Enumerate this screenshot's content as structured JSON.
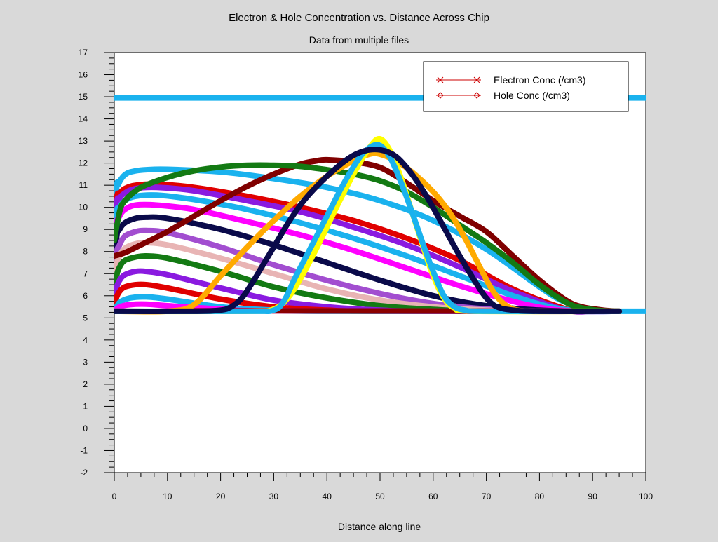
{
  "window": {
    "background": "#d9d9d9"
  },
  "chart_data": {
    "type": "line",
    "title": "Electron & Hole Concentration vs. Distance Across Chip",
    "subtitle": "Data from multiple files",
    "xlabel": "Distance along line",
    "ylabel": "",
    "xlim": [
      0,
      100
    ],
    "ylim": [
      -2,
      17
    ],
    "x_ticks": [
      0,
      10,
      20,
      30,
      40,
      50,
      60,
      70,
      80,
      90,
      100
    ],
    "y_ticks": [
      -2,
      -1,
      0,
      1,
      2,
      3,
      4,
      5,
      6,
      7,
      8,
      9,
      10,
      11,
      12,
      13,
      14,
      15,
      16,
      17
    ],
    "grid": false,
    "legend": {
      "placement": "top-right",
      "entries": [
        {
          "label": "Electron Conc (/cm3)",
          "marker": "x",
          "color": "#cc0000"
        },
        {
          "label": "Hole Conc (/cm3)",
          "marker": "diamond",
          "color": "#cc0000"
        }
      ]
    },
    "series": [
      {
        "color": "#1ab2ee",
        "x": [
          0,
          100
        ],
        "y": [
          14.95,
          14.95
        ]
      },
      {
        "color": "#1ab2ee",
        "x": [
          0,
          0.4,
          0.8,
          1.5,
          2.5,
          4,
          6,
          10,
          20,
          30,
          40,
          50,
          60,
          70,
          80,
          84,
          88,
          90,
          92,
          95,
          100
        ],
        "y": [
          5.3,
          10.6,
          11.05,
          11.35,
          11.55,
          11.65,
          11.7,
          11.72,
          11.6,
          11.3,
          10.9,
          10.3,
          9.4,
          8.1,
          6.4,
          5.8,
          5.45,
          5.35,
          5.3,
          5.3,
          5.3
        ]
      },
      {
        "color": "#e00000",
        "x": [
          0,
          0.4,
          1,
          2,
          4,
          8,
          15,
          25,
          35,
          45,
          55,
          65,
          75,
          85,
          88,
          92,
          95
        ],
        "y": [
          5.3,
          10.1,
          10.6,
          10.85,
          11.0,
          11.05,
          10.9,
          10.5,
          10.0,
          9.4,
          8.6,
          7.6,
          6.3,
          5.4,
          5.3,
          5.3,
          5.3
        ]
      },
      {
        "color": "#8a1ae0",
        "x": [
          0,
          0.4,
          1,
          2,
          4,
          8,
          15,
          25,
          35,
          45,
          55,
          65,
          75,
          85,
          90,
          95
        ],
        "y": [
          5.3,
          9.9,
          10.4,
          10.65,
          10.85,
          10.9,
          10.75,
          10.3,
          9.8,
          9.1,
          8.3,
          7.3,
          6.2,
          5.35,
          5.3,
          5.3
        ]
      },
      {
        "color": "#1ab2ee",
        "x": [
          0,
          0.4,
          1,
          2,
          4,
          8,
          15,
          25,
          35,
          45,
          55,
          65,
          75,
          82,
          88,
          95
        ],
        "y": [
          5.3,
          9.5,
          10.0,
          10.3,
          10.5,
          10.55,
          10.35,
          9.9,
          9.3,
          8.6,
          7.8,
          6.9,
          6.0,
          5.5,
          5.3,
          5.3
        ]
      },
      {
        "color": "#ff00ff",
        "x": [
          0,
          0.4,
          1,
          2,
          4,
          8,
          15,
          25,
          35,
          45,
          55,
          65,
          75,
          82,
          88,
          95
        ],
        "y": [
          5.3,
          9.0,
          9.6,
          9.9,
          10.1,
          10.1,
          9.9,
          9.35,
          8.75,
          8.05,
          7.25,
          6.45,
          5.75,
          5.4,
          5.3,
          5.3
        ]
      },
      {
        "color": "#0a0a4a",
        "x": [
          0,
          0.4,
          1,
          2,
          4,
          6,
          10,
          20,
          30,
          40,
          50,
          60,
          70,
          80,
          88,
          95
        ],
        "y": [
          5.3,
          8.5,
          9.0,
          9.3,
          9.5,
          9.55,
          9.5,
          9.0,
          8.3,
          7.5,
          6.7,
          6.0,
          5.55,
          5.35,
          5.3,
          5.3
        ]
      },
      {
        "color": "#a24ed0",
        "x": [
          0,
          0.4,
          1,
          2,
          4,
          6,
          10,
          20,
          30,
          40,
          50,
          60,
          70,
          80,
          88,
          95
        ],
        "y": [
          5.3,
          7.8,
          8.3,
          8.7,
          8.9,
          8.95,
          8.85,
          8.2,
          7.4,
          6.7,
          6.1,
          5.65,
          5.4,
          5.3,
          5.3,
          5.3
        ]
      },
      {
        "color": "#e8b4b4",
        "x": [
          0,
          0.4,
          1,
          2,
          4,
          6,
          10,
          20,
          30,
          40,
          50,
          60,
          70,
          80,
          95
        ],
        "y": [
          5.3,
          7.3,
          7.8,
          8.15,
          8.35,
          8.4,
          8.3,
          7.7,
          7.0,
          6.3,
          5.8,
          5.5,
          5.35,
          5.3,
          5.3
        ]
      },
      {
        "color": "#137a13",
        "x": [
          0,
          0.4,
          1,
          2,
          4,
          6,
          10,
          20,
          30,
          40,
          50,
          60,
          70,
          95
        ],
        "y": [
          5.3,
          6.8,
          7.3,
          7.6,
          7.75,
          7.8,
          7.7,
          7.1,
          6.4,
          5.9,
          5.55,
          5.38,
          5.3,
          5.3
        ]
      },
      {
        "color": "#8a1ae0",
        "x": [
          0,
          0.4,
          1,
          2,
          4,
          6,
          10,
          20,
          30,
          40,
          50,
          60,
          95
        ],
        "y": [
          5.3,
          6.3,
          6.7,
          6.95,
          7.1,
          7.1,
          6.95,
          6.35,
          5.8,
          5.5,
          5.35,
          5.3,
          5.3
        ]
      },
      {
        "color": "#e00000",
        "x": [
          0,
          0.4,
          1,
          2,
          4,
          6,
          10,
          20,
          30,
          40,
          50,
          95
        ],
        "y": [
          5.3,
          5.9,
          6.2,
          6.4,
          6.5,
          6.5,
          6.35,
          5.85,
          5.5,
          5.35,
          5.3,
          5.3
        ]
      },
      {
        "color": "#1ab2ee",
        "x": [
          0,
          1,
          3,
          6,
          10,
          20,
          30,
          40,
          95
        ],
        "y": [
          5.3,
          5.7,
          5.9,
          5.95,
          5.85,
          5.5,
          5.35,
          5.3,
          5.3
        ]
      },
      {
        "color": "#ff00ff",
        "x": [
          0,
          1,
          3,
          6,
          10,
          20,
          30,
          95
        ],
        "y": [
          5.3,
          5.5,
          5.6,
          5.62,
          5.55,
          5.4,
          5.32,
          5.3
        ]
      },
      {
        "color": "#8b0000",
        "x": [
          0,
          10,
          20,
          85,
          95
        ],
        "y": [
          5.3,
          5.3,
          5.32,
          5.3,
          5.3
        ]
      },
      {
        "color": "#800000",
        "x": [
          0,
          2,
          5,
          10,
          15,
          20,
          25,
          30,
          35,
          38,
          40,
          45,
          50,
          55,
          60,
          65,
          70,
          75,
          80,
          85,
          88,
          92,
          95
        ],
        "y": [
          7.8,
          7.95,
          8.3,
          8.9,
          9.6,
          10.3,
          10.95,
          11.5,
          11.95,
          12.1,
          12.15,
          12.05,
          11.8,
          11.1,
          10.3,
          9.6,
          8.9,
          7.8,
          6.7,
          5.8,
          5.5,
          5.35,
          5.3
        ]
      },
      {
        "color": "#137a13",
        "x": [
          0,
          1,
          2,
          5,
          10,
          15,
          20,
          25,
          30,
          35,
          40,
          45,
          50,
          55,
          60,
          65,
          70,
          75,
          80,
          85,
          88,
          92,
          95
        ],
        "y": [
          8.5,
          9.8,
          10.3,
          10.9,
          11.35,
          11.65,
          11.82,
          11.9,
          11.9,
          11.85,
          11.7,
          11.5,
          11.2,
          10.7,
          10.0,
          9.2,
          8.4,
          7.5,
          6.5,
          5.7,
          5.45,
          5.32,
          5.3
        ]
      },
      {
        "color": "#ffaa00",
        "x": [
          0,
          10,
          15,
          20,
          25,
          30,
          35,
          40,
          45,
          48,
          50,
          53,
          56,
          60,
          63,
          66,
          69,
          71,
          73,
          75,
          78,
          85,
          95
        ],
        "y": [
          5.3,
          5.3,
          5.6,
          6.9,
          8.2,
          9.4,
          10.5,
          11.4,
          12.1,
          12.4,
          12.4,
          12.1,
          11.6,
          10.7,
          9.8,
          8.6,
          7.2,
          6.3,
          5.7,
          5.4,
          5.3,
          5.3,
          5.3
        ]
      },
      {
        "color": "#ffff00",
        "x": [
          0,
          25,
          30,
          33,
          36,
          39,
          42,
          45,
          48,
          50,
          52,
          54,
          56,
          58,
          60,
          62,
          64,
          68,
          95
        ],
        "y": [
          5.3,
          5.3,
          5.4,
          6.0,
          7.2,
          8.6,
          10.1,
          11.5,
          12.7,
          13.1,
          12.5,
          11.3,
          9.8,
          8.3,
          6.9,
          5.9,
          5.45,
          5.3,
          5.3
        ]
      },
      {
        "color": "#1ab2ee",
        "x": [
          0,
          25,
          30,
          32,
          34,
          37,
          40,
          43,
          46,
          48,
          50,
          52,
          54,
          56,
          58,
          60,
          62,
          64,
          66,
          70,
          95
        ],
        "y": [
          5.3,
          5.3,
          5.35,
          5.8,
          6.8,
          8.2,
          9.6,
          11.0,
          12.2,
          12.7,
          12.8,
          12.2,
          11.1,
          9.8,
          8.4,
          7.1,
          6.0,
          5.5,
          5.35,
          5.3,
          5.3
        ]
      },
      {
        "color": "#0a0a4a",
        "x": [
          0,
          15,
          20,
          22,
          24,
          26,
          28,
          30,
          33,
          36,
          40,
          44,
          47,
          50,
          53,
          56,
          59,
          62,
          65,
          68,
          70,
          72,
          75,
          80,
          95
        ],
        "y": [
          5.3,
          5.3,
          5.35,
          5.5,
          5.9,
          6.6,
          7.4,
          8.2,
          9.4,
          10.4,
          11.4,
          12.2,
          12.55,
          12.6,
          12.3,
          11.5,
          10.4,
          9.1,
          7.8,
          6.6,
          5.9,
          5.5,
          5.35,
          5.3,
          5.3
        ]
      }
    ]
  }
}
